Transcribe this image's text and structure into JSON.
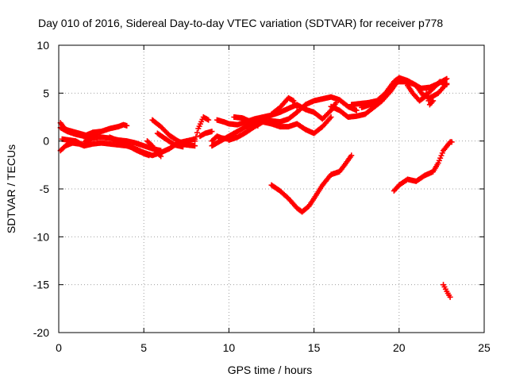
{
  "chart_data": {
    "type": "scatter",
    "title": "Day 010 of 2016, Sidereal Day-to-day VTEC variation (SDTVAR) for receiver p778",
    "xlabel": "GPS time / hours",
    "ylabel": "SDTVAR / TECUs",
    "xlim": [
      0,
      25
    ],
    "ylim": [
      -20,
      10
    ],
    "xticks": [
      0,
      5,
      10,
      15,
      20,
      25
    ],
    "yticks": [
      -20,
      -15,
      -10,
      -5,
      0,
      5,
      10
    ],
    "grid": true,
    "marker": "plus",
    "series_color": "#ff0000",
    "tracks": [
      [
        [
          0.1,
          1.9
        ],
        [
          0.4,
          1.2
        ],
        [
          0.8,
          1.0
        ],
        [
          1.2,
          0.8
        ],
        [
          1.6,
          0.6
        ],
        [
          2.0,
          0.9
        ],
        [
          2.5,
          1.0
        ],
        [
          3.0,
          1.3
        ],
        [
          3.5,
          1.5
        ],
        [
          3.8,
          1.7
        ],
        [
          4.0,
          1.6
        ]
      ],
      [
        [
          0.1,
          1.4
        ],
        [
          0.5,
          1.0
        ],
        [
          1.0,
          0.7
        ],
        [
          1.5,
          0.5
        ],
        [
          2.0,
          0.6
        ],
        [
          2.3,
          0.7
        ]
      ],
      [
        [
          0.1,
          -1.0
        ],
        [
          0.4,
          -0.5
        ],
        [
          0.8,
          -0.2
        ],
        [
          1.2,
          -0.3
        ],
        [
          1.5,
          -0.5
        ],
        [
          2.0,
          -0.3
        ],
        [
          2.5,
          -0.2
        ],
        [
          3.0,
          -0.3
        ],
        [
          3.5,
          -0.4
        ],
        [
          4.0,
          -0.5
        ],
        [
          4.5,
          -0.8
        ],
        [
          5.0,
          -1.2
        ],
        [
          5.5,
          -1.5
        ],
        [
          6.0,
          -1.2
        ],
        [
          6.5,
          -0.8
        ],
        [
          7.0,
          -0.2
        ],
        [
          7.5,
          0.0
        ],
        [
          8.0,
          0.2
        ]
      ],
      [
        [
          0.2,
          0.2
        ],
        [
          0.6,
          0.1
        ],
        [
          1.0,
          0.0
        ],
        [
          1.3,
          -0.3
        ]
      ],
      [
        [
          1.5,
          -0.1
        ],
        [
          2.0,
          0.3
        ],
        [
          2.5,
          0.4
        ],
        [
          3.0,
          0.3
        ],
        [
          3.5,
          0.1
        ],
        [
          4.0,
          0.0
        ],
        [
          4.5,
          -0.2
        ],
        [
          5.0,
          -0.5
        ],
        [
          5.5,
          -0.8
        ],
        [
          6.0,
          -1.0
        ]
      ],
      [
        [
          3.0,
          0.4
        ],
        [
          3.5,
          0.0
        ],
        [
          4.0,
          -0.4
        ],
        [
          4.5,
          -0.9
        ],
        [
          5.0,
          -1.3
        ],
        [
          5.3,
          -1.5
        ]
      ],
      [
        [
          5.2,
          0.0
        ],
        [
          5.5,
          -0.5
        ],
        [
          5.8,
          -1.2
        ],
        [
          6.0,
          -1.6
        ]
      ],
      [
        [
          5.5,
          2.2
        ],
        [
          6.0,
          1.5
        ],
        [
          6.5,
          0.6
        ],
        [
          7.0,
          0.0
        ],
        [
          7.5,
          -0.4
        ],
        [
          8.0,
          -0.5
        ]
      ],
      [
        [
          5.8,
          0.8
        ],
        [
          6.3,
          0.2
        ],
        [
          6.8,
          -0.4
        ],
        [
          7.3,
          -0.6
        ]
      ],
      [
        [
          8.0,
          0.0
        ],
        [
          8.2,
          1.3
        ],
        [
          8.5,
          2.5
        ],
        [
          8.8,
          2.2
        ]
      ],
      [
        [
          8.3,
          0.5
        ],
        [
          8.6,
          0.8
        ],
        [
          9.0,
          1.0
        ]
      ],
      [
        [
          9.0,
          0.0
        ],
        [
          9.3,
          0.5
        ],
        [
          9.6,
          0.3
        ],
        [
          10.0,
          0.2
        ],
        [
          10.3,
          0.8
        ]
      ],
      [
        [
          9.3,
          2.2
        ],
        [
          9.7,
          2.0
        ],
        [
          10.0,
          1.8
        ],
        [
          10.5,
          1.7
        ],
        [
          11.0,
          2.0
        ],
        [
          11.5,
          2.3
        ],
        [
          12.0,
          2.5
        ],
        [
          12.5,
          2.7
        ],
        [
          13.0,
          3.0
        ],
        [
          13.5,
          3.4
        ],
        [
          14.0,
          3.8
        ],
        [
          14.5,
          3.3
        ],
        [
          15.0,
          3.0
        ],
        [
          15.5,
          2.3
        ],
        [
          16.0,
          3.2
        ],
        [
          16.3,
          4.0
        ]
      ],
      [
        [
          9.0,
          -0.5
        ],
        [
          9.5,
          0.0
        ],
        [
          10.0,
          0.5
        ],
        [
          10.5,
          1.0
        ],
        [
          11.0,
          1.5
        ],
        [
          11.5,
          1.9
        ],
        [
          12.0,
          2.2
        ],
        [
          12.5,
          2.1
        ],
        [
          13.0,
          2.0
        ],
        [
          13.5,
          2.3
        ],
        [
          14.0,
          3.0
        ],
        [
          14.5,
          3.8
        ],
        [
          15.0,
          4.2
        ],
        [
          15.5,
          4.4
        ],
        [
          16.0,
          4.6
        ],
        [
          16.5,
          4.3
        ],
        [
          17.0,
          3.6
        ],
        [
          17.5,
          3.2
        ]
      ],
      [
        [
          10.0,
          0.1
        ],
        [
          10.5,
          0.4
        ],
        [
          11.0,
          0.9
        ],
        [
          11.5,
          1.5
        ],
        [
          12.0,
          2.0
        ],
        [
          12.5,
          1.8
        ],
        [
          13.0,
          1.5
        ],
        [
          13.5,
          1.5
        ],
        [
          14.0,
          1.8
        ],
        [
          14.5,
          1.2
        ],
        [
          15.0,
          0.8
        ],
        [
          15.5,
          1.5
        ],
        [
          16.0,
          2.5
        ]
      ],
      [
        [
          10.3,
          2.5
        ],
        [
          10.8,
          2.4
        ],
        [
          11.3,
          2.0
        ],
        [
          11.7,
          1.6
        ]
      ],
      [
        [
          12.5,
          2.8
        ],
        [
          13.0,
          3.5
        ],
        [
          13.5,
          4.5
        ],
        [
          13.8,
          4.2
        ],
        [
          14.0,
          3.5
        ]
      ],
      [
        [
          12.5,
          -4.6
        ],
        [
          13.0,
          -5.2
        ],
        [
          13.5,
          -6.0
        ],
        [
          14.0,
          -7.0
        ],
        [
          14.3,
          -7.4
        ],
        [
          14.7,
          -6.8
        ],
        [
          15.0,
          -6.0
        ],
        [
          15.5,
          -4.6
        ],
        [
          16.0,
          -3.5
        ],
        [
          16.5,
          -3.2
        ],
        [
          16.8,
          -2.5
        ],
        [
          17.0,
          -2.0
        ],
        [
          17.2,
          -1.5
        ]
      ],
      [
        [
          16.0,
          3.6
        ],
        [
          16.5,
          3.2
        ],
        [
          17.0,
          2.5
        ],
        [
          17.5,
          2.6
        ],
        [
          18.0,
          2.8
        ],
        [
          18.5,
          3.5
        ],
        [
          19.0,
          4.2
        ],
        [
          19.5,
          5.2
        ],
        [
          19.9,
          6.2
        ],
        [
          20.3,
          6.2
        ],
        [
          20.8,
          6.0
        ],
        [
          21.3,
          5.5
        ],
        [
          21.8,
          5.6
        ],
        [
          22.3,
          6.0
        ],
        [
          22.8,
          6.5
        ]
      ],
      [
        [
          17.2,
          3.8
        ],
        [
          17.7,
          3.9
        ],
        [
          18.2,
          4.0
        ],
        [
          18.7,
          4.2
        ],
        [
          19.2,
          5.0
        ],
        [
          19.7,
          6.2
        ],
        [
          20.0,
          6.6
        ],
        [
          20.5,
          6.3
        ],
        [
          21.0,
          5.8
        ],
        [
          21.4,
          4.8
        ],
        [
          21.8,
          4.5
        ],
        [
          22.3,
          5.0
        ],
        [
          22.8,
          6.0
        ]
      ],
      [
        [
          17.8,
          3.5
        ],
        [
          18.3,
          3.8
        ],
        [
          18.8,
          4.0
        ]
      ],
      [
        [
          20.5,
          5.8
        ],
        [
          20.8,
          5.0
        ],
        [
          21.2,
          4.2
        ],
        [
          21.5,
          4.6
        ],
        [
          22.0,
          5.5
        ],
        [
          22.4,
          6.2
        ],
        [
          22.8,
          5.9
        ]
      ],
      [
        [
          21.6,
          5.0
        ],
        [
          21.8,
          3.8
        ],
        [
          22.0,
          4.2
        ]
      ],
      [
        [
          19.7,
          -5.2
        ],
        [
          20.0,
          -4.6
        ],
        [
          20.5,
          -4.0
        ],
        [
          21.0,
          -4.2
        ],
        [
          21.5,
          -3.6
        ],
        [
          22.0,
          -3.2
        ],
        [
          22.3,
          -2.3
        ],
        [
          22.6,
          -1.0
        ],
        [
          23.0,
          -0.1
        ],
        [
          23.1,
          -0.1
        ]
      ],
      [
        [
          22.6,
          -15.0
        ],
        [
          22.8,
          -15.7
        ],
        [
          23.0,
          -16.3
        ]
      ]
    ]
  }
}
